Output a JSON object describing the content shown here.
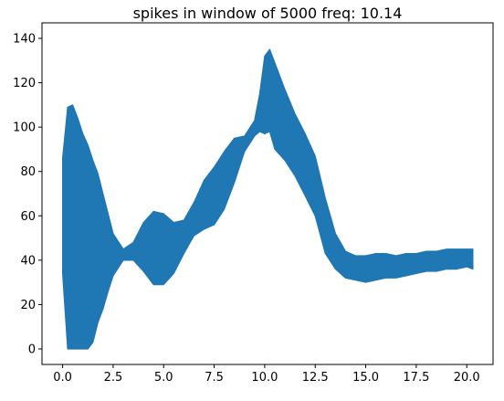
{
  "chart_data": {
    "type": "area",
    "title": "spikes in window of 5000 freq: 10.14",
    "xlabel": "",
    "ylabel": "",
    "xlim": [
      -1.02,
      21.3
    ],
    "ylim": [
      -7,
      147
    ],
    "x_ticks": [
      0.0,
      2.5,
      5.0,
      7.5,
      10.0,
      12.5,
      15.0,
      17.5,
      20.0
    ],
    "x_tick_labels": [
      "0.0",
      "2.5",
      "5.0",
      "7.5",
      "10.0",
      "12.5",
      "15.0",
      "17.5",
      "20.0"
    ],
    "y_ticks": [
      0,
      20,
      40,
      60,
      80,
      100,
      120,
      140
    ],
    "y_tick_labels": [
      "0",
      "20",
      "40",
      "60",
      "80",
      "100",
      "120",
      "140"
    ],
    "series": [
      {
        "name": "spikes",
        "color": "#1f77b4",
        "x": [
          0.0,
          0.25,
          0.5,
          0.75,
          1.0,
          1.25,
          1.5,
          1.75,
          2.0,
          2.25,
          2.5,
          3.0,
          3.5,
          4.0,
          4.5,
          5.0,
          5.5,
          6.0,
          6.5,
          7.0,
          7.5,
          8.0,
          8.5,
          9.0,
          9.5,
          9.75,
          10.0,
          10.25,
          10.5,
          11.0,
          11.5,
          12.0,
          12.5,
          13.0,
          13.5,
          14.0,
          14.5,
          15.0,
          15.5,
          16.0,
          16.5,
          17.0,
          17.5,
          18.0,
          18.5,
          19.0,
          19.5,
          20.0,
          20.3
        ],
        "upper": [
          86,
          109,
          110,
          104,
          97,
          92,
          85,
          79,
          70,
          61,
          52,
          45,
          48,
          57,
          62,
          61,
          57,
          58,
          66,
          76,
          82,
          89,
          95,
          96,
          103,
          115,
          132,
          135,
          129,
          117,
          106,
          97,
          87,
          68,
          52,
          44,
          42,
          42,
          43,
          43,
          42,
          43,
          43,
          44,
          44,
          45,
          45,
          45,
          45
        ],
        "lower": [
          34,
          0,
          0,
          0,
          0,
          0,
          3,
          12,
          18,
          26,
          33,
          40,
          40,
          35,
          29,
          29,
          34,
          43,
          51,
          54,
          56,
          63,
          75,
          89,
          96,
          98,
          97,
          98,
          90,
          85,
          78,
          69,
          60,
          43,
          36,
          32,
          31,
          30,
          31,
          32,
          32,
          33,
          34,
          35,
          35,
          36,
          36,
          37,
          36
        ]
      }
    ]
  }
}
